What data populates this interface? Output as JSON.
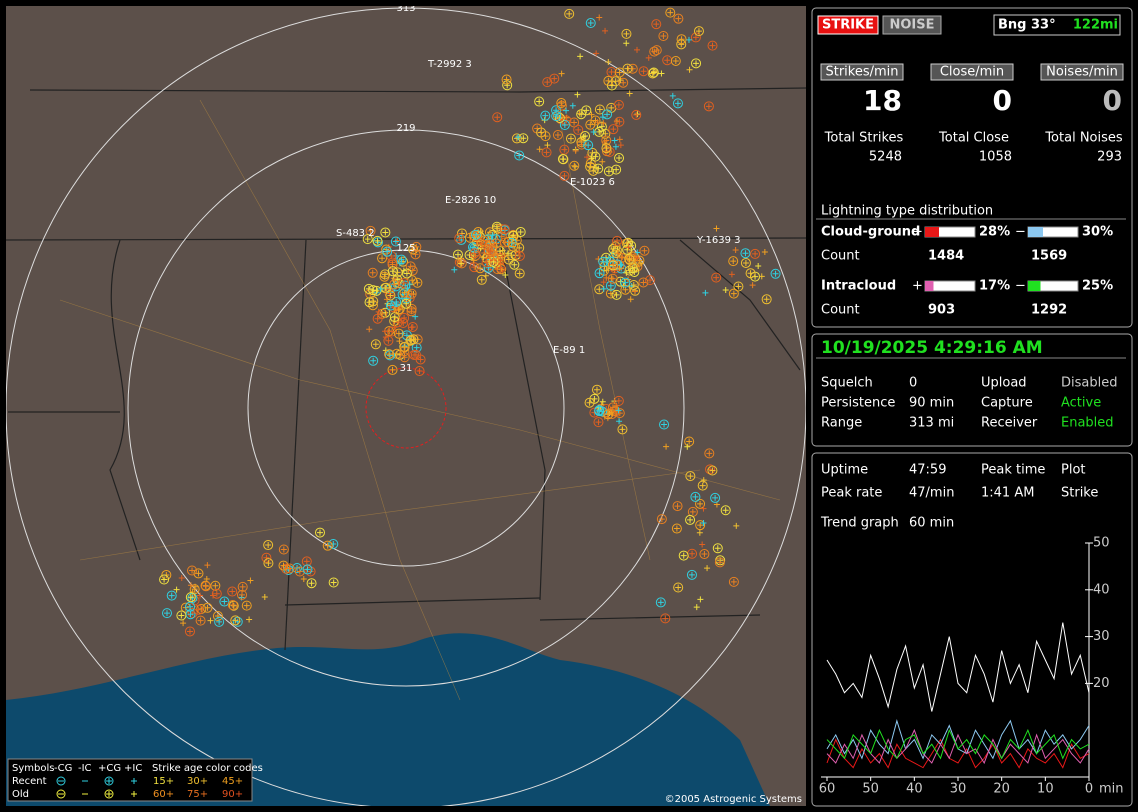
{
  "map": {
    "range_labels": [
      "313",
      "219",
      "125",
      "31"
    ],
    "storm_labels": [
      "T-2992 3",
      "E-2826 10",
      "S-483 2",
      "E-1023 6",
      "Y-1639 3",
      "E-89 1"
    ],
    "legend": {
      "symbols_title": "Symbols",
      "headers": [
        "-CG",
        "-IC",
        "+CG",
        "+IC"
      ],
      "rows": [
        "Recent",
        "Old"
      ],
      "age_title": "Strike age color codes",
      "ages": [
        "15+",
        "30+",
        "45+",
        "60+",
        "75+",
        "90+"
      ]
    },
    "copyright": "©2005 Astrogenic Systems"
  },
  "status": {
    "strike": "STRIKE",
    "noise": "NOISE",
    "bearing": "Bng 33°",
    "distance": "122mi"
  },
  "rates": {
    "headers": [
      "Strikes/min",
      "Close/min",
      "Noises/min"
    ],
    "values": [
      18,
      0,
      0
    ],
    "total_labels": [
      "Total Strikes",
      "Total Close",
      "Total Noises"
    ],
    "totals": [
      5248,
      1058,
      293
    ]
  },
  "distribution": {
    "title": "Lightning type distribution",
    "count_label": "Count",
    "rows": [
      {
        "label": "Cloud-ground",
        "pos": {
          "sign": "+",
          "percent": 28,
          "percent_label": "28%",
          "count": 1484,
          "color": "#e81818"
        },
        "neg": {
          "sign": "−",
          "percent": 30,
          "percent_label": "30%",
          "count": 1569,
          "color": "#8cc8f0"
        }
      },
      {
        "label": "Intracloud",
        "pos": {
          "sign": "+",
          "percent": 17,
          "percent_label": "17%",
          "count": 903,
          "color": "#e060b0"
        },
        "neg": {
          "sign": "−",
          "percent": 25,
          "percent_label": "25%",
          "count": 1292,
          "color": "#20e020"
        }
      }
    ]
  },
  "datetime": "10/19/2025 4:29:16 AM",
  "settings": [
    [
      "Squelch",
      "0",
      "Upload",
      "Disabled"
    ],
    [
      "Persistence",
      "90 min",
      "Capture",
      "Active"
    ],
    [
      "Range",
      "313 mi",
      "Receiver",
      "Enabled"
    ]
  ],
  "stats": [
    [
      "Uptime",
      "47:59",
      "Peak time",
      "Plot"
    ],
    [
      "Peak rate",
      "47/min",
      "1:41 AM",
      "Strike"
    ]
  ],
  "trend": {
    "label": "Trend graph",
    "span": "60 min"
  },
  "chart_data": {
    "type": "line",
    "xlabel": "min",
    "x": [
      60,
      58,
      56,
      54,
      52,
      50,
      48,
      46,
      44,
      42,
      40,
      38,
      36,
      34,
      32,
      30,
      28,
      26,
      24,
      22,
      20,
      18,
      16,
      14,
      12,
      10,
      8,
      6,
      4,
      2,
      0
    ],
    "xlim": [
      60,
      0
    ],
    "xticks": [
      60,
      50,
      40,
      30,
      20,
      10,
      0
    ],
    "ylim": [
      0,
      50
    ],
    "yticks": [
      20,
      30,
      40,
      50
    ],
    "series": [
      {
        "color": "#ffffff",
        "values": [
          25,
          22,
          18,
          20,
          17,
          26,
          21,
          15,
          23,
          28,
          19,
          24,
          14,
          22,
          30,
          20,
          18,
          26,
          22,
          16,
          27,
          20,
          24,
          18,
          29,
          25,
          21,
          33,
          22,
          26,
          18
        ]
      },
      {
        "color": "#e81818",
        "values": [
          3,
          8,
          4,
          2,
          6,
          3,
          5,
          2,
          7,
          4,
          3,
          2,
          5,
          8,
          4,
          3,
          6,
          2,
          4,
          7,
          3,
          5,
          2,
          6,
          4,
          3,
          5,
          2,
          7,
          4,
          5
        ]
      },
      {
        "color": "#8cc8f0",
        "values": [
          6,
          9,
          5,
          8,
          4,
          10,
          7,
          5,
          12,
          6,
          8,
          4,
          9,
          7,
          11,
          6,
          5,
          10,
          7,
          4,
          9,
          12,
          6,
          8,
          5,
          10,
          7,
          9,
          6,
          8,
          11
        ]
      },
      {
        "color": "#e060b0",
        "values": [
          5,
          3,
          7,
          4,
          9,
          5,
          3,
          8,
          4,
          6,
          10,
          5,
          3,
          7,
          4,
          9,
          5,
          6,
          3,
          8,
          4,
          7,
          5,
          3,
          9,
          4,
          6,
          8,
          5,
          3,
          6
        ]
      },
      {
        "color": "#20e020",
        "values": [
          8,
          6,
          4,
          9,
          7,
          5,
          10,
          6,
          4,
          8,
          9,
          5,
          7,
          4,
          10,
          6,
          8,
          5,
          9,
          7,
          4,
          8,
          6,
          10,
          5,
          7,
          9,
          4,
          8,
          6,
          7
        ]
      }
    ]
  }
}
